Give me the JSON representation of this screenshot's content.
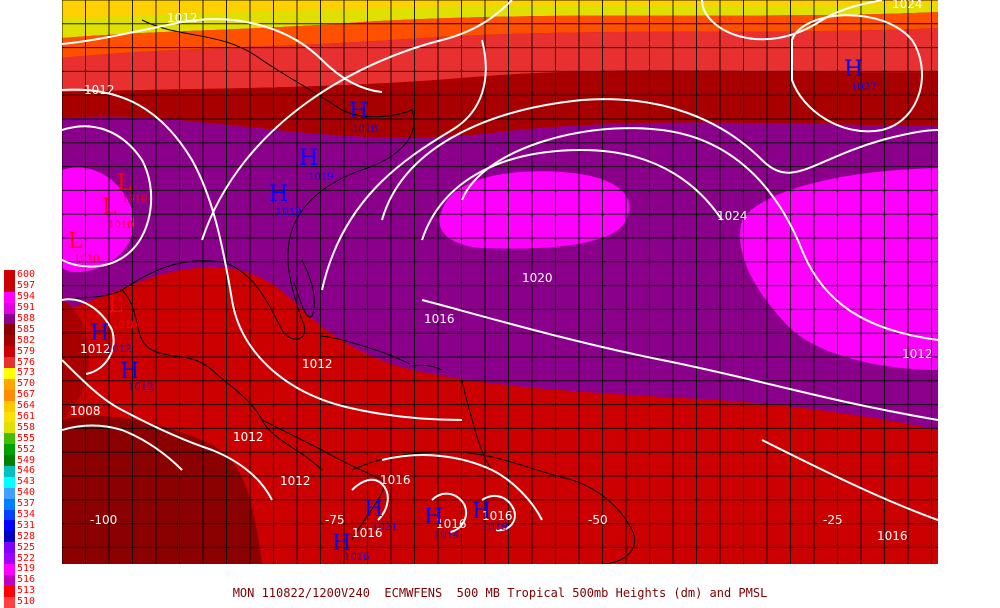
{
  "caption": "MON 110822/1200V240  ECMWFENS  500 MB Tropical 500mb Heights (dm) and PMSL",
  "legend": {
    "levels": [
      {
        "label": "600",
        "color": "#d00000"
      },
      {
        "label": "597",
        "color": "#c80000"
      },
      {
        "label": "594",
        "color": "#ff00ff"
      },
      {
        "label": "591",
        "color": "#e000e0"
      },
      {
        "label": "588",
        "color": "#8b008b"
      },
      {
        "label": "585",
        "color": "#8b0000"
      },
      {
        "label": "582",
        "color": "#a00000"
      },
      {
        "label": "579",
        "color": "#cc0000"
      },
      {
        "label": "576",
        "color": "#e83030"
      },
      {
        "label": "573",
        "color": "#ffff00"
      },
      {
        "label": "570",
        "color": "#ffa500"
      },
      {
        "label": "567",
        "color": "#ff8c00"
      },
      {
        "label": "564",
        "color": "#ffc800"
      },
      {
        "label": "561",
        "color": "#ffe000"
      },
      {
        "label": "558",
        "color": "#e0e000"
      },
      {
        "label": "555",
        "color": "#40c000"
      },
      {
        "label": "552",
        "color": "#00a000"
      },
      {
        "label": "549",
        "color": "#008000"
      },
      {
        "label": "546",
        "color": "#00c0c0"
      },
      {
        "label": "543",
        "color": "#00ffff"
      },
      {
        "label": "540",
        "color": "#40a0ff"
      },
      {
        "label": "537",
        "color": "#0080ff"
      },
      {
        "label": "534",
        "color": "#0040ff"
      },
      {
        "label": "531",
        "color": "#0000ff"
      },
      {
        "label": "528",
        "color": "#0000c0"
      },
      {
        "label": "525",
        "color": "#8000ff"
      },
      {
        "label": "522",
        "color": "#a000ff"
      },
      {
        "label": "519",
        "color": "#ff00ff"
      },
      {
        "label": "516",
        "color": "#c000c0"
      },
      {
        "label": "513",
        "color": "#ff0000"
      },
      {
        "label": "510",
        "color": "#ff4040"
      }
    ]
  },
  "map": {
    "colors": {
      "c585": "#8b0000",
      "c582": "#a80000",
      "c579": "#cc0000",
      "c576": "#e83030",
      "c573": "#ff4000",
      "c570": "#ff8000",
      "c567": "#e0e000",
      "c588": "#8b008b",
      "c591": "#ff00ff",
      "contour": "#ffffff",
      "grid": "#000000",
      "high": "#0000ff",
      "low": "#ff0000"
    },
    "longitude_labels": [
      "-100",
      "-75",
      "-50",
      "-25"
    ],
    "isobar_labels": [
      "1012",
      "1024",
      "1012",
      "1024",
      "1020",
      "1016",
      "1012",
      "1012",
      "1008",
      "1012",
      "1012",
      "1016",
      "1016",
      "1016",
      "1016",
      "1012",
      "1016"
    ],
    "pressure_centers": [
      {
        "type": "H",
        "value": "1027"
      },
      {
        "type": "H",
        "value": "1018"
      },
      {
        "type": "H",
        "value": "1019"
      },
      {
        "type": "H",
        "value": "1019"
      },
      {
        "type": "L",
        "value": "1010"
      },
      {
        "type": "L",
        "value": "1010"
      },
      {
        "type": "L",
        "value": "1010"
      },
      {
        "type": "L",
        "value": "1010"
      },
      {
        "type": "H",
        "value": "1012"
      },
      {
        "type": "H",
        "value": "1012"
      },
      {
        "type": "H",
        "value": "1021"
      },
      {
        "type": "H",
        "value": "1014"
      },
      {
        "type": "H",
        "value": "1019"
      },
      {
        "type": "H",
        "value": "1016"
      }
    ]
  }
}
